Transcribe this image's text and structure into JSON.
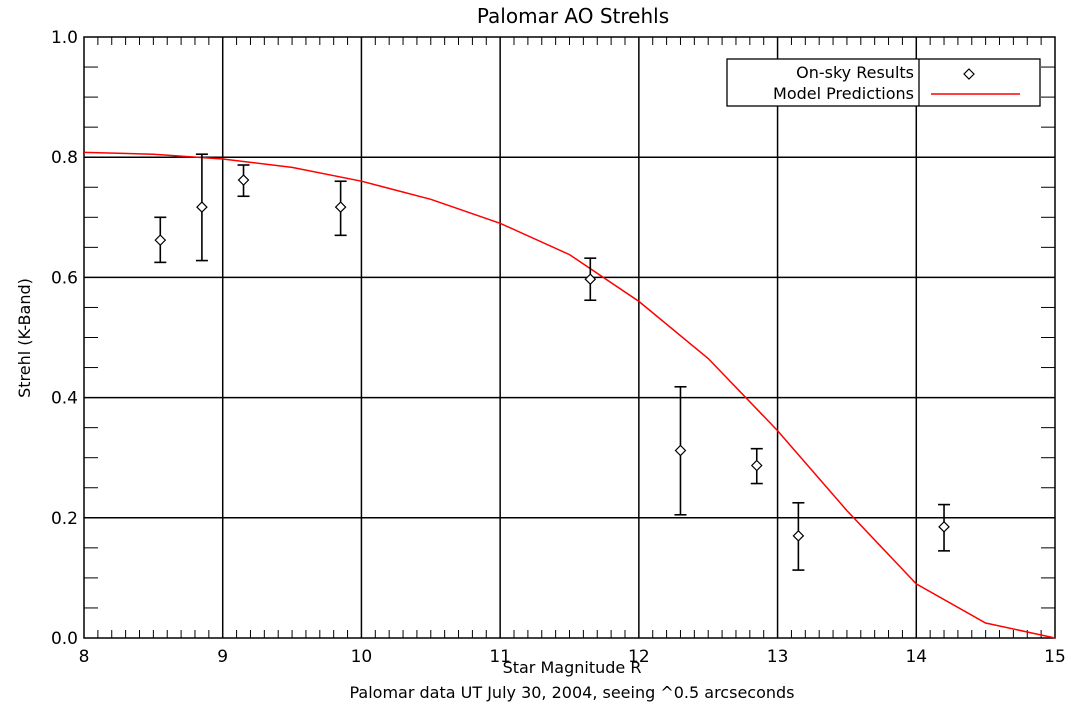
{
  "chart_data": {
    "type": "scatter",
    "title": "Palomar AO Strehls",
    "xlabel": "Star Magnitude R",
    "subtitle": "Palomar data UT July 30, 2004, seeing ^0.5 arcseconds",
    "ylabel": "Strehl (K-Band)",
    "xlim": [
      8,
      15
    ],
    "ylim": [
      0.0,
      1.0
    ],
    "x_ticks": [
      "8",
      "9",
      "10",
      "11",
      "12",
      "13",
      "14",
      "15"
    ],
    "y_ticks": [
      "0.0",
      "0.2",
      "0.4",
      "0.6",
      "0.8",
      "1.0"
    ],
    "grid": true,
    "legend_position": "top-right",
    "series": [
      {
        "name": "On-sky Results",
        "kind": "points-with-error-bars",
        "marker": "diamond",
        "color": "#000000",
        "points": [
          {
            "x": 8.55,
            "y": 0.662,
            "err_low": 0.625,
            "err_high": 0.7
          },
          {
            "x": 8.85,
            "y": 0.717,
            "err_low": 0.628,
            "err_high": 0.805
          },
          {
            "x": 9.15,
            "y": 0.762,
            "err_low": 0.735,
            "err_high": 0.787
          },
          {
            "x": 9.85,
            "y": 0.717,
            "err_low": 0.67,
            "err_high": 0.76
          },
          {
            "x": 11.65,
            "y": 0.597,
            "err_low": 0.562,
            "err_high": 0.632
          },
          {
            "x": 12.3,
            "y": 0.312,
            "err_low": 0.205,
            "err_high": 0.418
          },
          {
            "x": 12.85,
            "y": 0.287,
            "err_low": 0.257,
            "err_high": 0.315
          },
          {
            "x": 13.15,
            "y": 0.17,
            "err_low": 0.113,
            "err_high": 0.225
          },
          {
            "x": 14.2,
            "y": 0.185,
            "err_low": 0.145,
            "err_high": 0.222
          }
        ]
      },
      {
        "name": "Model Predictions",
        "kind": "line",
        "color": "#ff0000",
        "x": [
          8.0,
          8.5,
          9.0,
          9.5,
          10.0,
          10.5,
          11.0,
          11.5,
          12.0,
          12.5,
          13.0,
          13.5,
          14.0,
          14.5,
          15.0
        ],
        "y": [
          0.808,
          0.805,
          0.797,
          0.783,
          0.76,
          0.73,
          0.69,
          0.638,
          0.56,
          0.465,
          0.345,
          0.212,
          0.09,
          0.025,
          0.0
        ]
      }
    ]
  }
}
